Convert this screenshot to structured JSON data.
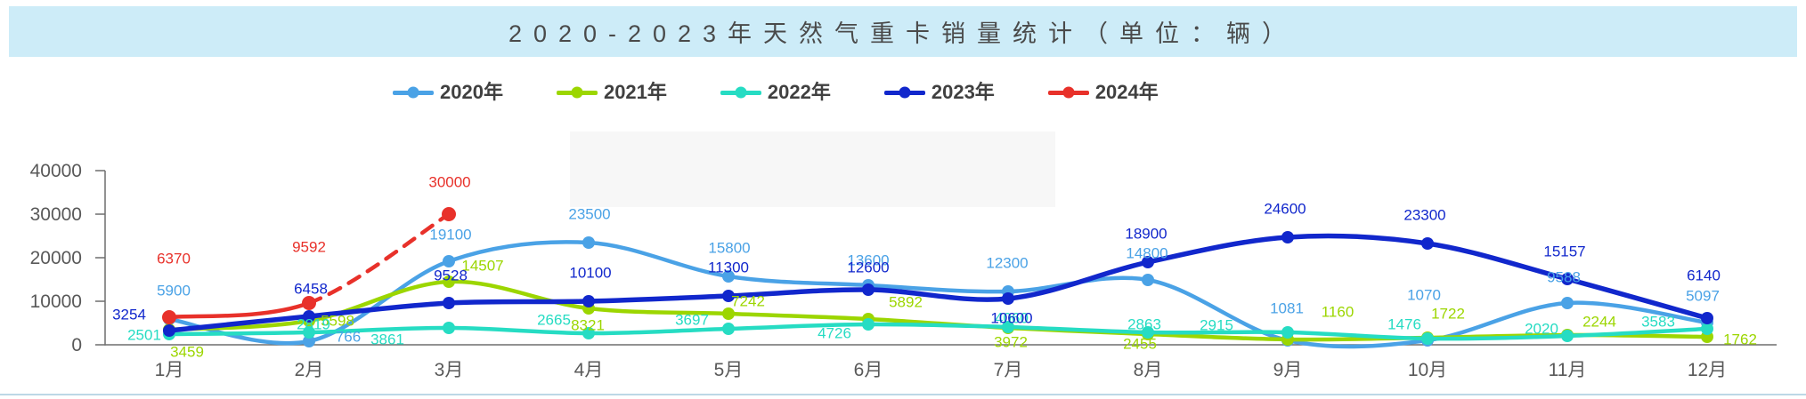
{
  "title": "2020-2023年天然气重卡销量统计（单位：辆）",
  "legend": [
    {
      "label": "2020年",
      "color": "#4aa2e6"
    },
    {
      "label": "2021年",
      "color": "#9cd600"
    },
    {
      "label": "2022年",
      "color": "#26dcc3"
    },
    {
      "label": "2023年",
      "color": "#1127cc"
    },
    {
      "label": "2024年",
      "color": "#e8312a"
    }
  ],
  "colors": {
    "title_bar_bg": "#cdecf8",
    "axis": "#6e6e6e",
    "axis_text": "#595959",
    "bottom_rule": "#bcd8e6"
  },
  "chart_data": {
    "type": "line",
    "title": "2020-2023年天然气重卡销量统计（单位：辆）",
    "xlabel": "",
    "ylabel": "",
    "categories": [
      "1月",
      "2月",
      "3月",
      "4月",
      "5月",
      "6月",
      "7月",
      "8月",
      "9月",
      "10月",
      "11月",
      "12月"
    ],
    "y_ticks": [
      0,
      10000,
      20000,
      30000,
      40000
    ],
    "ylim": [
      0,
      40000
    ],
    "grid": false,
    "legend_position": "top",
    "smoothing": "spline",
    "series": [
      {
        "name": "2020年",
        "color": "#4aa2e6",
        "line_style": "solid",
        "values": [
          5900,
          766,
          19100,
          23500,
          15800,
          13600,
          12300,
          14800,
          1081,
          1070,
          9588,
          5097
        ],
        "label_offsets": [
          [
            5,
            -32
          ],
          [
            44,
            -5
          ],
          [
            2,
            -30
          ],
          [
            1,
            -32
          ],
          [
            1,
            -32
          ],
          [
            0,
            -28
          ],
          [
            -1,
            -32
          ],
          [
            -1,
            -30
          ],
          [
            -1,
            -36
          ],
          [
            -4,
            -51
          ],
          [
            -4,
            -29
          ],
          [
            -5,
            -30
          ]
        ]
      },
      {
        "name": "2021年",
        "color": "#9cd600",
        "line_style": "solid",
        "values": [
          3459,
          5598,
          14507,
          8321,
          7242,
          5892,
          3972,
          2455,
          1160,
          1722,
          2244,
          1762
        ],
        "label_offsets": [
          [
            20,
            25
          ],
          [
            32,
            0
          ],
          [
            38,
            -18
          ],
          [
            -1,
            19
          ],
          [
            22,
            -14
          ],
          [
            42,
            -19
          ],
          [
            3,
            16
          ],
          [
            -9,
            11
          ],
          [
            56,
            -31
          ],
          [
            23,
            -27
          ],
          [
            36,
            -15
          ],
          [
            37,
            3
          ]
        ]
      },
      {
        "name": "2022年",
        "color": "#26dcc3",
        "line_style": "solid",
        "values": [
          2501,
          2819,
          3861,
          2665,
          3697,
          4726,
          4060,
          2863,
          2915,
          1476,
          2020,
          3583
        ],
        "label_offsets": [
          [
            -28,
            1
          ],
          [
            5,
            -9
          ],
          [
            -69,
            13
          ],
          [
            -39,
            -15
          ],
          [
            -41,
            -10
          ],
          [
            -38,
            10
          ],
          [
            4,
            -10
          ],
          [
            -4,
            -9
          ],
          [
            -80,
            -8
          ],
          [
            -26,
            -16
          ],
          [
            -29,
            -8
          ],
          [
            -55,
            -8
          ]
        ]
      },
      {
        "name": "2023年",
        "color": "#1127cc",
        "line_style": "solid",
        "values": [
          3254,
          6458,
          9528,
          10100,
          11300,
          12600,
          10600,
          18900,
          24600,
          23300,
          15157,
          6140
        ],
        "label_offsets": [
          [
            -45,
            -18
          ],
          [
            2,
            -31
          ],
          [
            2,
            -31
          ],
          [
            2,
            -32
          ],
          [
            0,
            -32
          ],
          [
            0,
            -25
          ],
          [
            4,
            22
          ],
          [
            -2,
            -32
          ],
          [
            -3,
            -32
          ],
          [
            -3,
            -32
          ],
          [
            -3,
            -31
          ],
          [
            -4,
            -48
          ]
        ]
      },
      {
        "name": "2024年",
        "color": "#e8312a",
        "line_style": "dashed_after_first_segment",
        "values": [
          6370,
          9592,
          30000
        ],
        "label_offsets": [
          [
            5,
            -66
          ],
          [
            0,
            -63
          ],
          [
            1,
            -36
          ]
        ]
      }
    ]
  }
}
